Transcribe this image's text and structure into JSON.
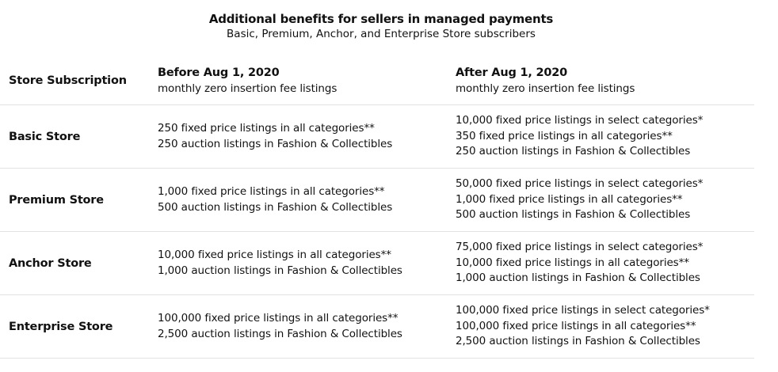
{
  "header": {
    "title": "Additional benefits for sellers in managed payments",
    "subtitle": "Basic, Premium, Anchor, and Enterprise Store subscribers"
  },
  "table": {
    "columns": {
      "name": "Store Subscription",
      "before_title": "Before Aug 1, 2020",
      "before_sub": "monthly zero insertion fee listings",
      "after_title": "After Aug 1, 2020",
      "after_sub": "monthly zero insertion fee listings"
    },
    "rows": [
      {
        "name": "Basic Store",
        "before": [
          "250 fixed price listings in all categories**",
          "250 auction listings in Fashion & Collectibles"
        ],
        "after": [
          "10,000 fixed price listings in select categories*",
          "350 fixed price listings in all categories**",
          "250 auction listings in Fashion & Collectibles"
        ]
      },
      {
        "name": "Premium Store",
        "before": [
          "1,000 fixed price listings in all categories**",
          "500 auction listings in Fashion & Collectibles"
        ],
        "after": [
          "50,000 fixed price listings in select categories*",
          "1,000 fixed price listings in all categories**",
          "500 auction listings in Fashion & Collectibles"
        ]
      },
      {
        "name": "Anchor Store",
        "before": [
          "10,000 fixed price listings in all categories**",
          "1,000 auction listings in Fashion & Collectibles"
        ],
        "after": [
          "75,000 fixed price listings in select categories*",
          "10,000 fixed price listings in all categories**",
          "1,000 auction listings in Fashion & Collectibles"
        ]
      },
      {
        "name": "Enterprise Store",
        "before": [
          "100,000 fixed price listings in all categories**",
          "2,500 auction listings in Fashion & Collectibles"
        ],
        "after": [
          "100,000 fixed price listings in select categories*",
          "100,000 fixed price listings in all categories**",
          "2,500 auction listings in Fashion & Collectibles"
        ]
      }
    ]
  }
}
